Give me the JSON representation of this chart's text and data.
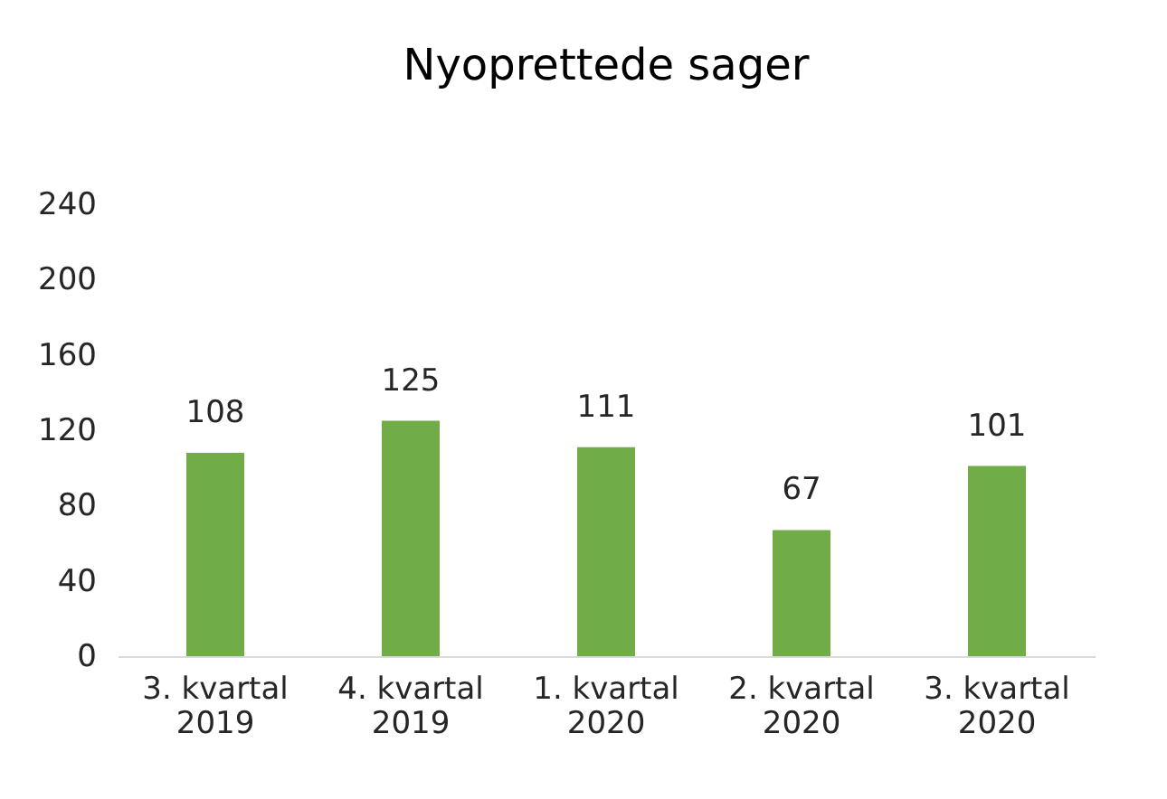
{
  "chart_data": {
    "type": "bar",
    "title": "Nyoprettede sager",
    "categories": [
      "3. kvartal 2019",
      "4. kvartal 2019",
      "1. kvartal 2020",
      "2. kvartal 2020",
      "3. kvartal 2020"
    ],
    "values": [
      108,
      125,
      111,
      67,
      101
    ],
    "color": "#70ad47",
    "ylim": [
      0,
      240
    ],
    "yticks": [
      0,
      40,
      80,
      120,
      160,
      200,
      240
    ],
    "grid": false,
    "data_labels": true
  }
}
